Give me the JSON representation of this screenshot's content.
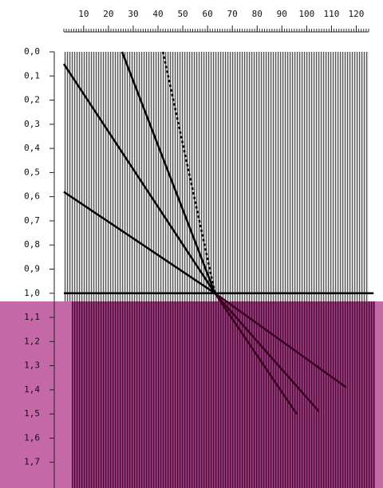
{
  "chart_data": {
    "type": "seismic",
    "xlim": [
      2,
      125
    ],
    "ylim": [
      0,
      1.8
    ],
    "xticks": [
      10,
      20,
      30,
      40,
      50,
      60,
      70,
      80,
      90,
      100,
      110,
      120
    ],
    "yticks": [
      {
        "value": 0,
        "label": "0,0"
      },
      {
        "value": 0.1,
        "label": "0,1"
      },
      {
        "value": 0.2,
        "label": "0,2"
      },
      {
        "value": 0.3,
        "label": "0,3"
      },
      {
        "value": 0.4,
        "label": "0,4"
      },
      {
        "value": 0.5,
        "label": "0,5"
      },
      {
        "value": 0.6,
        "label": "0,6"
      },
      {
        "value": 0.7,
        "label": "0,7"
      },
      {
        "value": 0.8,
        "label": "0,8"
      },
      {
        "value": 0.9,
        "label": "0,9"
      },
      {
        "value": 1.0,
        "label": "1,0"
      },
      {
        "value": 1.1,
        "label": "1,1"
      },
      {
        "value": 1.2,
        "label": "1,2"
      },
      {
        "value": 1.3,
        "label": "1,3"
      },
      {
        "value": 1.4,
        "label": "1,4"
      },
      {
        "value": 1.5,
        "label": "1,5"
      },
      {
        "value": 1.6,
        "label": "1,6"
      },
      {
        "value": 1.7,
        "label": "1,7"
      }
    ],
    "series": [
      {
        "color": "#000000",
        "x": [
          2,
          63
        ],
        "y": [
          0.05,
          1.0
        ]
      },
      {
        "color": "#000000",
        "x": [
          2,
          63
        ],
        "y": [
          0.58,
          1.0
        ]
      },
      {
        "color": "#000000",
        "x": [
          25.5,
          63
        ],
        "y": [
          0,
          1.0
        ]
      },
      {
        "color": "#000000",
        "dash": true,
        "x": [
          42,
          63
        ],
        "y": [
          0,
          1.0
        ]
      },
      {
        "color": "#3a0020",
        "x": [
          63,
          116
        ],
        "y": [
          1.0,
          1.39
        ]
      },
      {
        "color": "#3a0020",
        "x": [
          63,
          105
        ],
        "y": [
          1.0,
          1.49
        ]
      },
      {
        "color": "#3a0020",
        "x": [
          63,
          96
        ],
        "y": [
          1.0,
          1.5
        ]
      },
      {
        "color": "#000000",
        "x": [
          2,
          127
        ],
        "y": [
          1.0,
          1.0
        ]
      }
    ]
  }
}
